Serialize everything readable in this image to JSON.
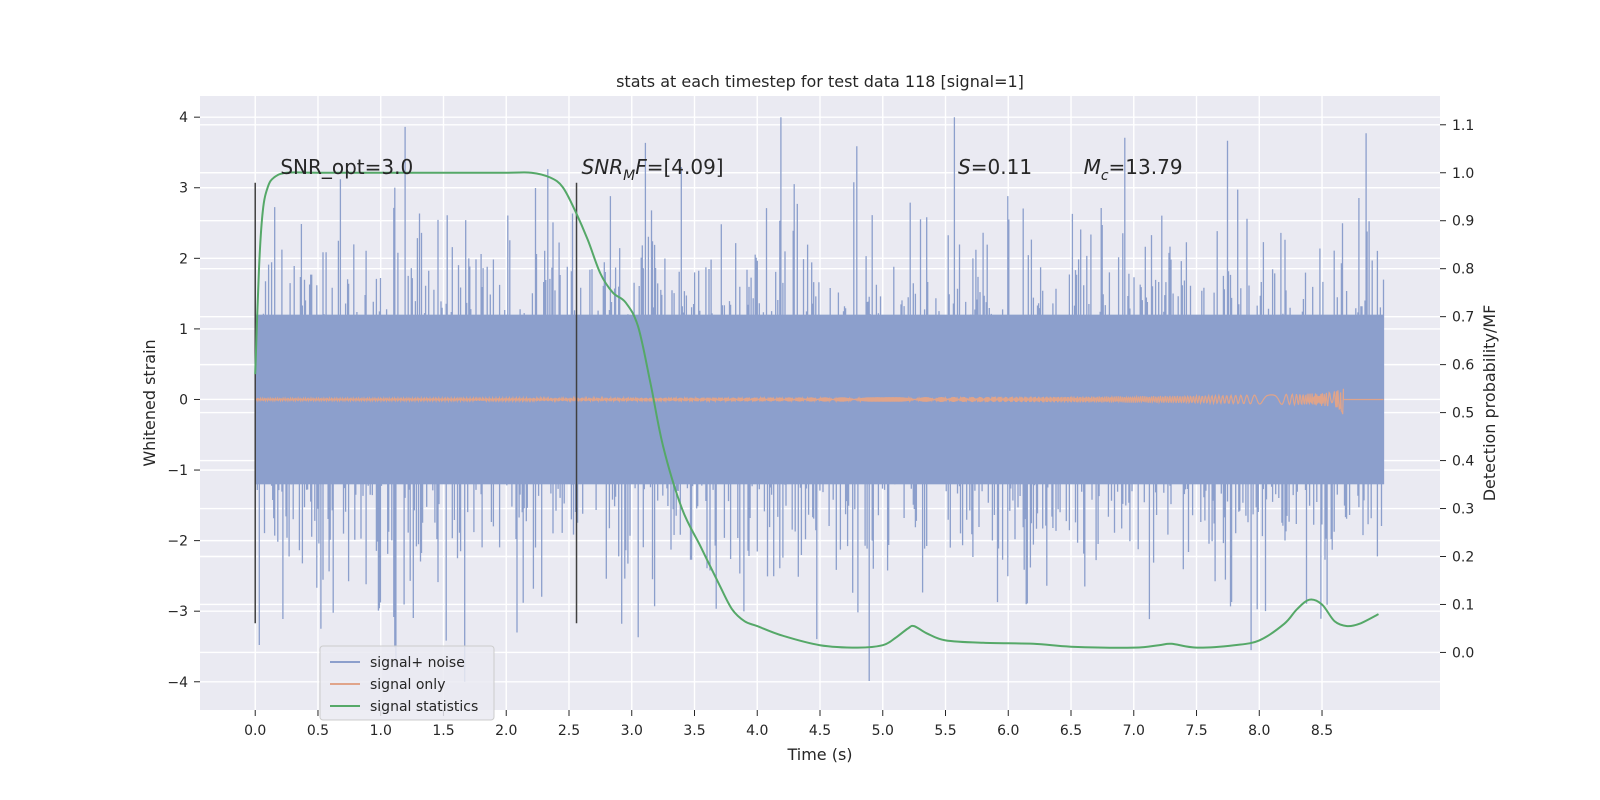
{
  "chart_data": {
    "type": "line",
    "title": "stats at each timestep for test data 118 [signal=1]",
    "xlabel": "Time (s)",
    "ylabel_left": "Whitened strain",
    "ylabel_right": "Detection probability/MF",
    "xlim": [
      -0.44,
      9.44
    ],
    "ylim_left": [
      -4.4,
      4.3
    ],
    "ylim_right": [
      -0.12,
      1.16
    ],
    "x_ticks": [
      "0.0",
      "0.5",
      "1.0",
      "1.5",
      "2.0",
      "2.5",
      "3.0",
      "3.5",
      "4.0",
      "4.5",
      "5.0",
      "5.5",
      "6.0",
      "6.5",
      "7.0",
      "7.5",
      "8.0",
      "8.5"
    ],
    "y_left_ticks": [
      "−4",
      "−3",
      "−2",
      "−1",
      "0",
      "1",
      "2",
      "3",
      "4"
    ],
    "y_right_ticks": [
      "0.0",
      "0.1",
      "0.2",
      "0.3",
      "0.4",
      "0.5",
      "0.6",
      "0.7",
      "0.8",
      "0.9",
      "1.0",
      "1.1"
    ],
    "grid": true,
    "legend_position": "lower-left",
    "series": [
      {
        "name": "signal+ noise",
        "color": "#8c9fcc",
        "kind": "noise-band",
        "x_range": [
          0.0,
          8.99
        ],
        "typical_amplitude": 1.2,
        "max_abs": 4.0
      },
      {
        "name": "signal only",
        "color": "#e0a48a",
        "kind": "chirp",
        "x_range": [
          0.0,
          8.67
        ],
        "peak_amplitude": 0.58,
        "merger_time": 8.67
      },
      {
        "name": "signal statistics",
        "color": "#55a868",
        "kind": "curve",
        "axis": "right",
        "x": [
          0.0,
          0.03,
          0.06,
          0.1,
          0.15,
          0.25,
          0.5,
          1.0,
          1.5,
          2.0,
          2.2,
          2.35,
          2.45,
          2.55,
          2.65,
          2.75,
          2.85,
          2.95,
          3.05,
          3.15,
          3.25,
          3.4,
          3.55,
          3.7,
          3.8,
          3.9,
          4.0,
          4.2,
          4.5,
          4.8,
          5.0,
          5.1,
          5.2,
          5.25,
          5.35,
          5.5,
          5.8,
          6.2,
          6.5,
          7.0,
          7.2,
          7.3,
          7.5,
          7.8,
          8.0,
          8.2,
          8.3,
          8.4,
          8.5,
          8.6,
          8.7,
          8.8,
          8.95
        ],
        "y": [
          0.58,
          0.8,
          0.92,
          0.97,
          0.99,
          1.0,
          1.0,
          1.0,
          1.0,
          1.0,
          1.0,
          0.99,
          0.97,
          0.92,
          0.86,
          0.79,
          0.75,
          0.73,
          0.68,
          0.56,
          0.43,
          0.3,
          0.22,
          0.14,
          0.09,
          0.065,
          0.055,
          0.035,
          0.015,
          0.01,
          0.015,
          0.03,
          0.05,
          0.055,
          0.04,
          0.025,
          0.02,
          0.018,
          0.012,
          0.01,
          0.015,
          0.018,
          0.01,
          0.015,
          0.025,
          0.06,
          0.09,
          0.11,
          0.1,
          0.065,
          0.055,
          0.06,
          0.08
        ]
      }
    ],
    "vertical_markers": [
      0.0,
      2.56
    ],
    "annotations": [
      {
        "label": "SNR_opt=3.0",
        "x": 0.2,
        "y_right": 1.0
      },
      {
        "label": "SNR_MF=[4.09]",
        "x": 2.6,
        "y_right": 1.0
      },
      {
        "label": "S=0.11",
        "x": 5.6,
        "y_right": 1.0
      },
      {
        "label": "M_c=13.79",
        "x": 6.6,
        "y_right": 1.0
      }
    ]
  }
}
